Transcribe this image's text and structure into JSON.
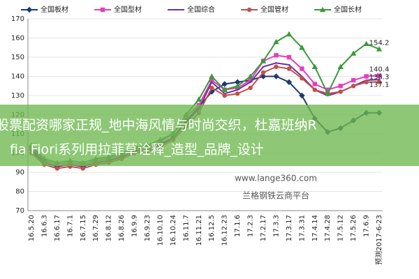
{
  "chart_data": {
    "type": "line",
    "categories": [
      "16.5.20",
      "16.6.3",
      "16.6.17",
      "16.7.1",
      "16.7.15",
      "16.7.29",
      "16.8.12",
      "16.8.26",
      "16.9.9",
      "16.9.23",
      "16.10.10",
      "16.10.24",
      "16.11.7",
      "16.11.21",
      "16.12.5",
      "16.12.23",
      "17.1.6",
      "17.2.3",
      "17.2.17",
      "17.3.3",
      "17.3.17",
      "17.3.31",
      "17.4.14",
      "17.4.28",
      "17.5.12",
      "17.5.26",
      "17.6.9",
      "预测2017-6-23"
    ],
    "series": [
      {
        "name": "全国板材",
        "color": "#1f3a6e",
        "marker": "diamond",
        "label_last": false,
        "values": [
          102,
          95,
          93,
          94,
          93,
          95,
          96,
          98,
          101,
          102,
          104,
          108,
          117,
          124,
          132,
          136,
          137,
          138,
          140,
          140,
          137,
          130,
          118,
          111,
          113,
          117,
          121,
          121
        ]
      },
      {
        "name": "全国型材",
        "color": "#e040c0",
        "marker": "square",
        "label_last": true,
        "values": [
          103,
          96,
          94,
          95,
          94,
          96,
          97,
          99,
          102,
          103,
          106,
          110,
          119,
          125,
          138,
          133,
          134,
          138,
          148,
          151,
          150,
          144,
          136,
          133,
          135,
          138,
          140,
          140.4
        ]
      },
      {
        "name": "全国综合",
        "color": "#7030a0",
        "marker": "none",
        "label_last": true,
        "values": [
          101,
          95,
          93,
          94,
          93,
          95,
          96,
          98,
          101,
          102,
          105,
          108,
          116,
          123,
          137,
          131,
          133,
          137,
          145,
          147,
          146,
          140,
          133,
          130,
          132,
          135,
          138,
          138.3
        ]
      },
      {
        "name": "全国管材",
        "color": "#c0504d",
        "marker": "circle",
        "label_last": true,
        "values": [
          100,
          94,
          92,
          93,
          92,
          94,
          95,
          97,
          100,
          101,
          103,
          107,
          114,
          121,
          134,
          130,
          131,
          134,
          142,
          145,
          144,
          139,
          133,
          131,
          132,
          135,
          137,
          137.1
        ]
      },
      {
        "name": "全国长材",
        "color": "#3a9a3a",
        "marker": "triangle",
        "label_last": true,
        "values": [
          104,
          97,
          95,
          96,
          95,
          97,
          98,
          100,
          103,
          104,
          107,
          110,
          120,
          128,
          140,
          133,
          135,
          140,
          148,
          158,
          162,
          155,
          145,
          131,
          145,
          152,
          157,
          154.2
        ]
      }
    ],
    "ylim": [
      70,
      170
    ],
    "yticks": [
      70,
      80,
      90,
      100,
      110,
      120,
      130,
      140,
      150,
      160,
      170
    ],
    "grid": true
  },
  "overlay": {
    "lines": [
      "股票配资哪家正规_地中海风情与时尚交织，杜嘉班纳R",
      "fia Fiori系列用拉菲草诠释_造型_品牌_设计"
    ],
    "watermark_url": "www.lange360.com",
    "watermark_name": "兰格钢铁云商平台"
  }
}
